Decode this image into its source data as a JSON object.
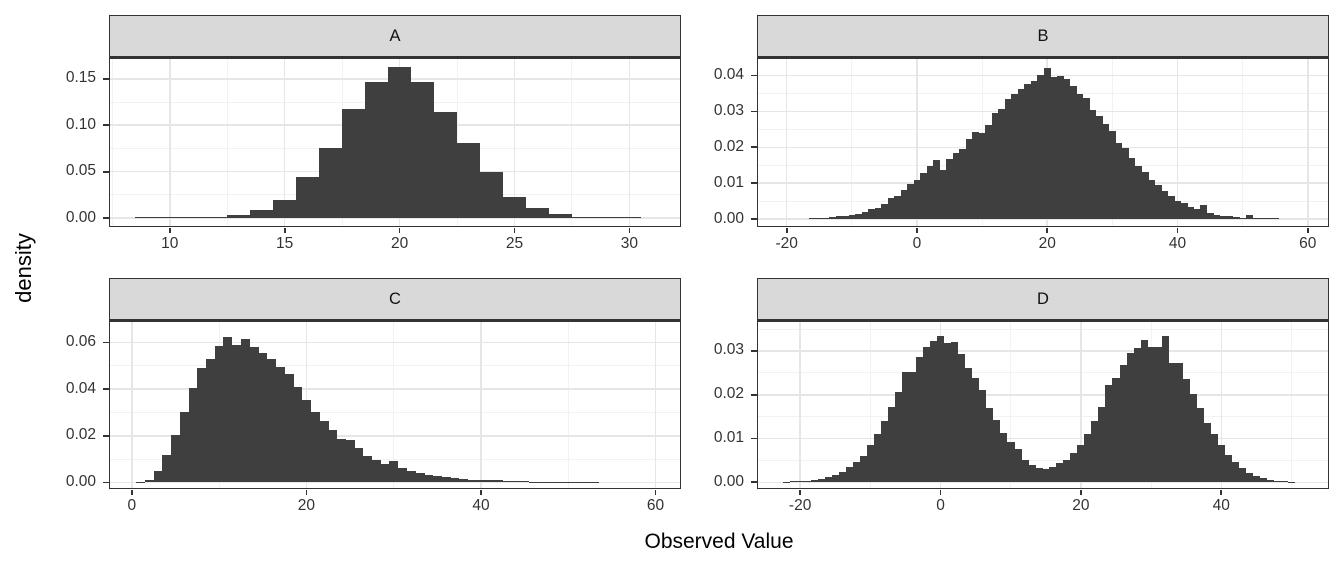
{
  "chart_data": {
    "type": "bar",
    "subtype": "faceted-density-histograms",
    "xlabel": "Observed Value",
    "ylabel": "density",
    "grid": true,
    "legend": "none",
    "style": {
      "bar_color": "#3F3F3F",
      "strip_fill": "#D9D9D9",
      "panel_border": "#333333",
      "grid_major": "#E6E6E6",
      "grid_minor": "#F2F2F2",
      "tick_color": "#333333"
    },
    "facets": [
      {
        "label": "A",
        "x_range": [
          7.4,
          32.2
        ],
        "y_range": [
          -0.0085,
          0.1713
        ],
        "x_ticks": [
          {
            "v": 10,
            "label": "10"
          },
          {
            "v": 15,
            "label": "15"
          },
          {
            "v": 20,
            "label": "20"
          },
          {
            "v": 25,
            "label": "25"
          },
          {
            "v": 30,
            "label": "30"
          }
        ],
        "x_minor": [
          7.5,
          12.5,
          17.5,
          22.5,
          27.5
        ],
        "y_ticks": [
          {
            "v": 0,
            "label": "0.00"
          },
          {
            "v": 0.05,
            "label": "0.05"
          },
          {
            "v": 0.1,
            "label": "0.10"
          },
          {
            "v": 0.15,
            "label": "0.15"
          }
        ],
        "y_minor": [
          0.025,
          0.075,
          0.125
        ],
        "bins": {
          "start": 8.5,
          "width": 1,
          "values": [
            0.0002,
            0.0003,
            0.0005,
            0.001,
            0.003,
            0.009,
            0.02,
            0.044,
            0.076,
            0.117,
            0.146,
            0.163,
            0.146,
            0.114,
            0.081,
            0.05,
            0.023,
            0.011,
            0.004,
            0.001,
            0.0005,
            0.0002
          ]
        }
      },
      {
        "label": "B",
        "x_range": [
          -24.4,
          63.1
        ],
        "y_range": [
          -0.0019,
          0.0446
        ],
        "x_ticks": [
          {
            "v": -20,
            "label": "-20"
          },
          {
            "v": 0,
            "label": "0"
          },
          {
            "v": 20,
            "label": "20"
          },
          {
            "v": 40,
            "label": "40"
          },
          {
            "v": 60,
            "label": "60"
          }
        ],
        "x_minor": [
          -10,
          10,
          30,
          50
        ],
        "y_ticks": [
          {
            "v": 0,
            "label": "0.00"
          },
          {
            "v": 0.01,
            "label": "0.01"
          },
          {
            "v": 0.02,
            "label": "0.02"
          },
          {
            "v": 0.03,
            "label": "0.03"
          },
          {
            "v": 0.04,
            "label": "0.04"
          }
        ],
        "y_minor": [
          0.005,
          0.015,
          0.025,
          0.035
        ],
        "bins": {
          "start": -16.5,
          "width": 1,
          "values": [
            0.0004,
            0.0001,
            0.0003,
            0.0005,
            0.0008,
            0.0009,
            0.0013,
            0.0015,
            0.0021,
            0.0028,
            0.0032,
            0.0043,
            0.0058,
            0.0064,
            0.0081,
            0.0097,
            0.0109,
            0.0128,
            0.0147,
            0.0164,
            0.0138,
            0.0168,
            0.0185,
            0.0196,
            0.0222,
            0.0244,
            0.0239,
            0.0263,
            0.0295,
            0.0306,
            0.0336,
            0.0348,
            0.0362,
            0.0377,
            0.0386,
            0.0402,
            0.0421,
            0.0395,
            0.0398,
            0.0389,
            0.0371,
            0.0348,
            0.0338,
            0.0305,
            0.0288,
            0.0264,
            0.0245,
            0.0212,
            0.0197,
            0.017,
            0.0148,
            0.0131,
            0.011,
            0.0095,
            0.0078,
            0.0065,
            0.0052,
            0.0045,
            0.0034,
            0.0028,
            0.004,
            0.0017,
            0.0013,
            0.001,
            0.0008,
            0.0006,
            0.0004,
            0.0012,
            0.0002,
            0.0002,
            0.0001,
            0.0001
          ]
        }
      },
      {
        "label": "C",
        "x_range": [
          -2.5,
          62.8
        ],
        "y_range": [
          -0.0024,
          0.0688
        ],
        "x_ticks": [
          {
            "v": 0,
            "label": "0"
          },
          {
            "v": 20,
            "label": "20"
          },
          {
            "v": 40,
            "label": "40"
          },
          {
            "v": 60,
            "label": "60"
          }
        ],
        "x_minor": [
          10,
          30,
          50
        ],
        "y_ticks": [
          {
            "v": 0,
            "label": "0.00"
          },
          {
            "v": 0.02,
            "label": "0.02"
          },
          {
            "v": 0.04,
            "label": "0.04"
          },
          {
            "v": 0.06,
            "label": "0.06"
          }
        ],
        "y_minor": [
          0.01,
          0.03,
          0.05
        ],
        "bins": {
          "start": 0.5,
          "width": 1,
          "values": [
            0.0001,
            0.0012,
            0.0048,
            0.0118,
            0.0202,
            0.03,
            0.0405,
            0.0492,
            0.0528,
            0.0585,
            0.0625,
            0.059,
            0.0615,
            0.0581,
            0.0555,
            0.053,
            0.0495,
            0.0463,
            0.041,
            0.0355,
            0.0302,
            0.0265,
            0.0224,
            0.0185,
            0.0182,
            0.0148,
            0.0112,
            0.0095,
            0.0078,
            0.0093,
            0.0062,
            0.005,
            0.0042,
            0.0033,
            0.0028,
            0.0022,
            0.0019,
            0.0014,
            0.0012,
            0.001,
            0.0009,
            0.0011,
            0.0005,
            0.0004,
            0.0004,
            0.0003,
            0.0002,
            0.0003,
            0.0002,
            0.0002,
            0.0001,
            0.0003,
            0.0001
          ]
        }
      },
      {
        "label": "D",
        "x_range": [
          -26.0,
          55.2
        ],
        "y_range": [
          -0.0013,
          0.0366
        ],
        "x_ticks": [
          {
            "v": -20,
            "label": "-20"
          },
          {
            "v": 0,
            "label": "0"
          },
          {
            "v": 20,
            "label": "20"
          },
          {
            "v": 40,
            "label": "40"
          }
        ],
        "x_minor": [
          -10,
          10,
          30,
          50
        ],
        "y_ticks": [
          {
            "v": 0,
            "label": "0.00"
          },
          {
            "v": 0.01,
            "label": "0.01"
          },
          {
            "v": 0.02,
            "label": "0.02"
          },
          {
            "v": 0.03,
            "label": "0.03"
          }
        ],
        "y_minor": [
          0.005,
          0.015,
          0.025,
          0.035
        ],
        "bins": {
          "start": -22.5,
          "width": 1,
          "values": [
            0.0001,
            0.0002,
            0.0002,
            0.0003,
            0.0005,
            0.0008,
            0.0011,
            0.0016,
            0.0024,
            0.0034,
            0.0046,
            0.006,
            0.0085,
            0.011,
            0.0139,
            0.0172,
            0.0206,
            0.0252,
            0.0252,
            0.0285,
            0.031,
            0.0322,
            0.0335,
            0.0318,
            0.032,
            0.0292,
            0.0262,
            0.0238,
            0.021,
            0.017,
            0.0143,
            0.0112,
            0.0092,
            0.0077,
            0.0051,
            0.004,
            0.0032,
            0.003,
            0.0035,
            0.0043,
            0.0052,
            0.0066,
            0.0086,
            0.0111,
            0.014,
            0.0171,
            0.0223,
            0.0238,
            0.0268,
            0.0295,
            0.0307,
            0.0324,
            0.0309,
            0.031,
            0.0335,
            0.0272,
            0.0273,
            0.0237,
            0.0202,
            0.017,
            0.0136,
            0.011,
            0.0086,
            0.0063,
            0.0046,
            0.0032,
            0.0022,
            0.0015,
            0.001,
            0.0006,
            0.0004,
            0.0002,
            0.0001
          ]
        }
      }
    ]
  }
}
